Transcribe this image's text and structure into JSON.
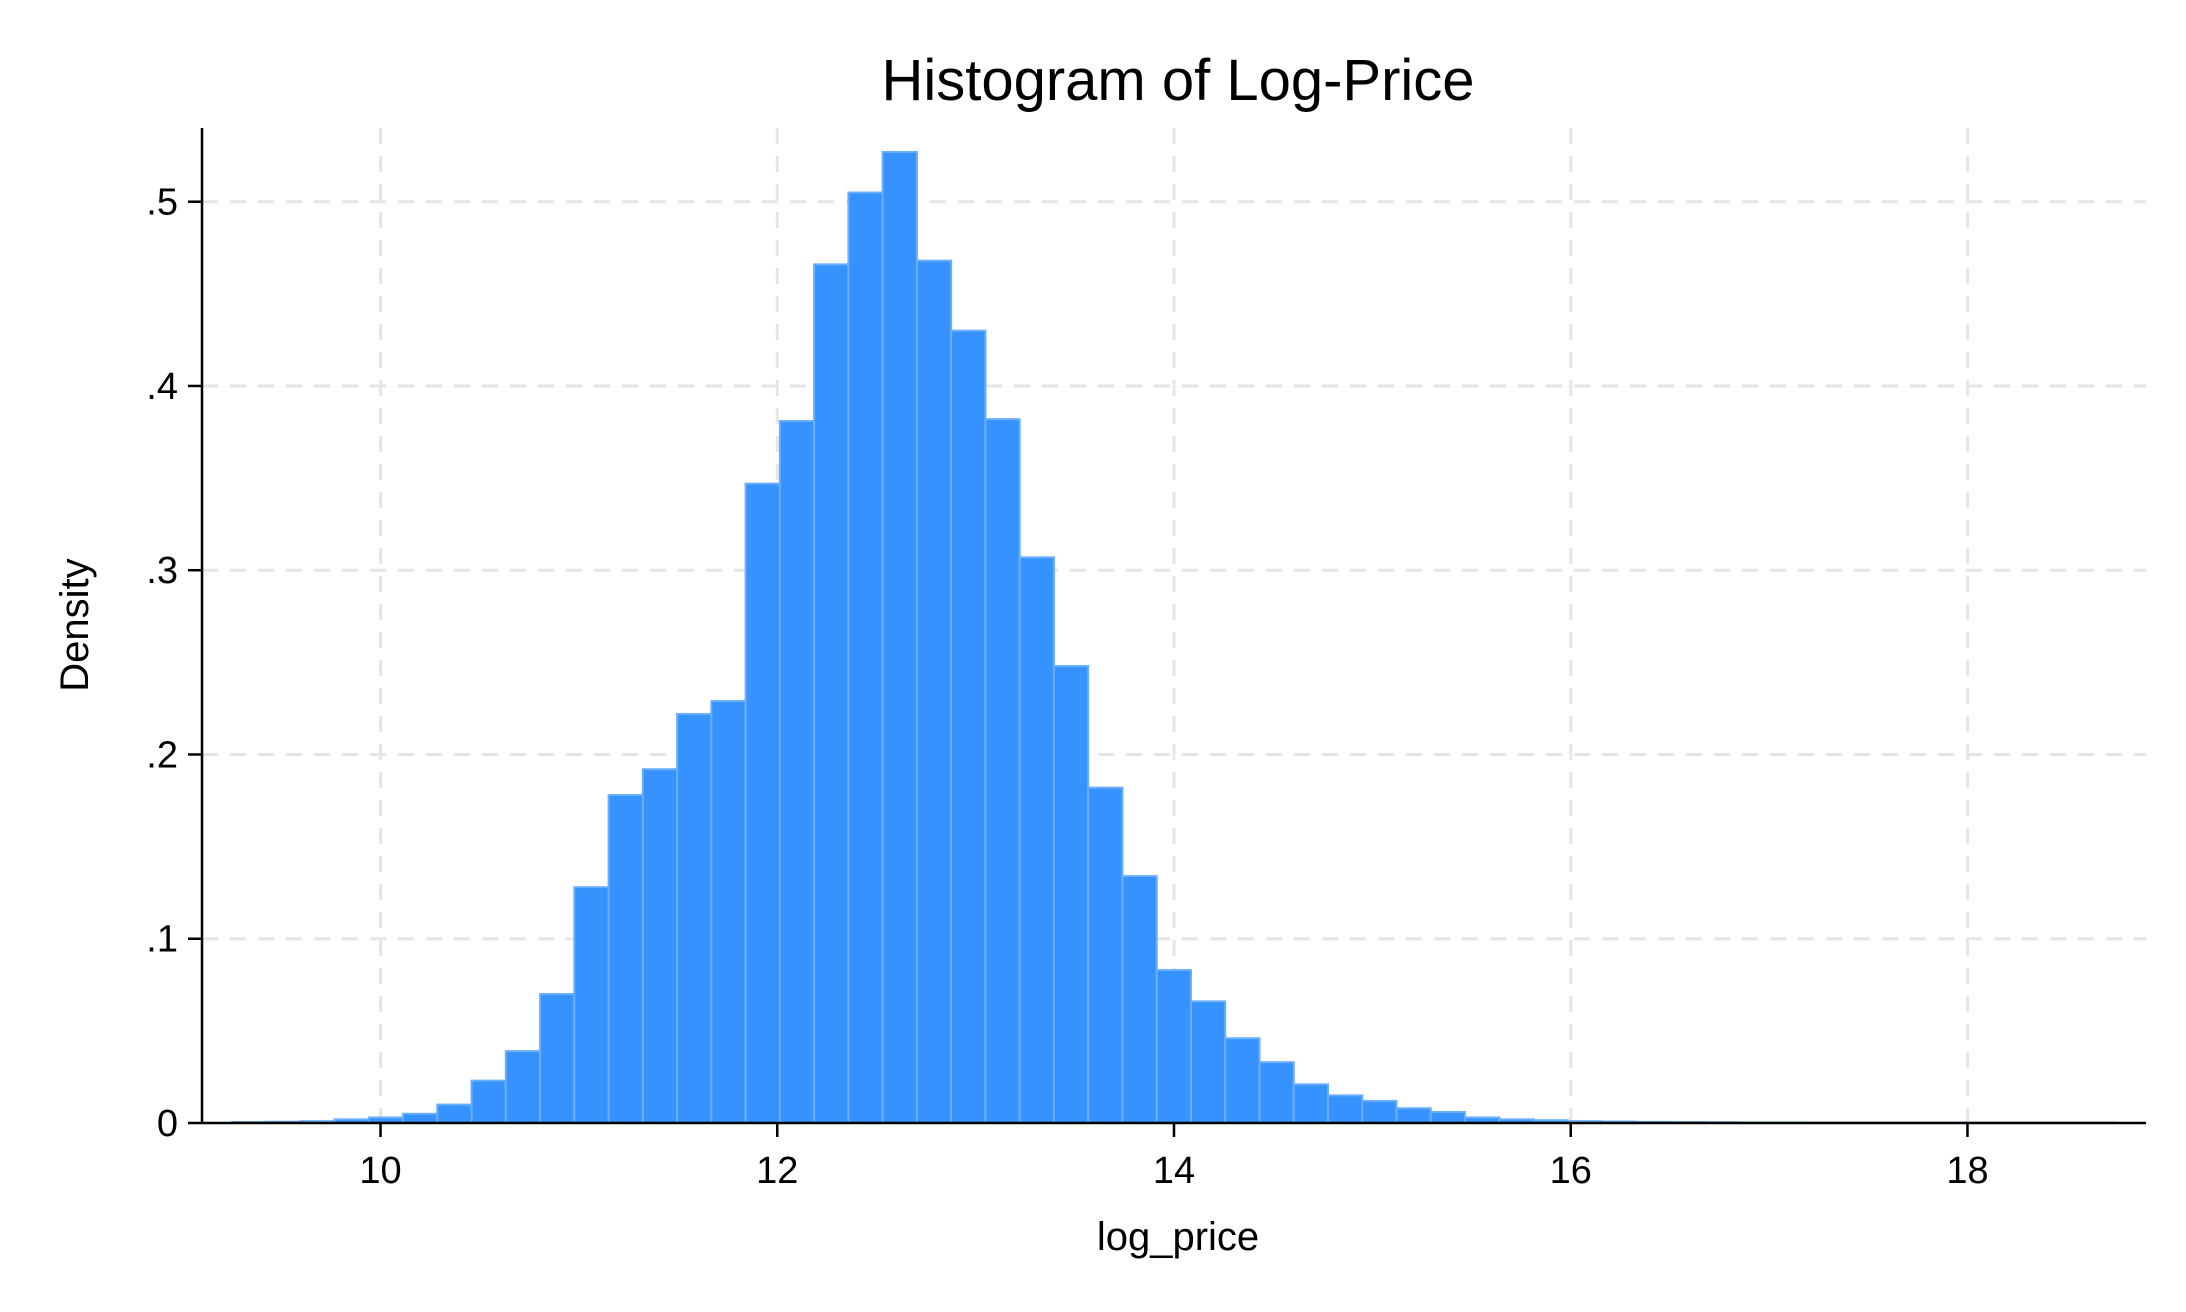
{
  "chart_data": {
    "type": "bar",
    "title": "Histogram of Log-Price",
    "xlabel": "log_price",
    "ylabel": "Density",
    "xlim": [
      9.1,
      18.9
    ],
    "ylim": [
      0,
      0.54
    ],
    "grid": true,
    "x_ticks": [
      {
        "value": 10,
        "label": "10"
      },
      {
        "value": 12,
        "label": "12"
      },
      {
        "value": 14,
        "label": "14"
      },
      {
        "value": 16,
        "label": "16"
      },
      {
        "value": 18,
        "label": "18"
      }
    ],
    "y_ticks": [
      {
        "value": 0,
        "label": "0"
      },
      {
        "value": 0.1,
        "label": ".1"
      },
      {
        "value": 0.2,
        "label": ".2"
      },
      {
        "value": 0.3,
        "label": ".3"
      },
      {
        "value": 0.4,
        "label": ".4"
      },
      {
        "value": 0.5,
        "label": ".5"
      }
    ],
    "bar_color": "#3592ff",
    "bar_edge_color": "#6aaeff",
    "bin_start": 9.25,
    "bin_width": 0.1727,
    "values": [
      0.0005,
      0.0007,
      0.001,
      0.002,
      0.003,
      0.005,
      0.01,
      0.023,
      0.039,
      0.07,
      0.128,
      0.178,
      0.192,
      0.222,
      0.229,
      0.347,
      0.381,
      0.466,
      0.505,
      0.527,
      0.468,
      0.43,
      0.382,
      0.307,
      0.248,
      0.182,
      0.134,
      0.083,
      0.066,
      0.046,
      0.033,
      0.021,
      0.015,
      0.012,
      0.008,
      0.006,
      0.003,
      0.002,
      0.0015,
      0.001,
      0.0008,
      0.0006,
      0.0005,
      0.0004,
      0.0003,
      0.0003,
      0.0002,
      0.0002,
      0.0002,
      0.0001,
      0.0001,
      0.0001,
      0.0001,
      0.0001,
      0.0001
    ]
  }
}
